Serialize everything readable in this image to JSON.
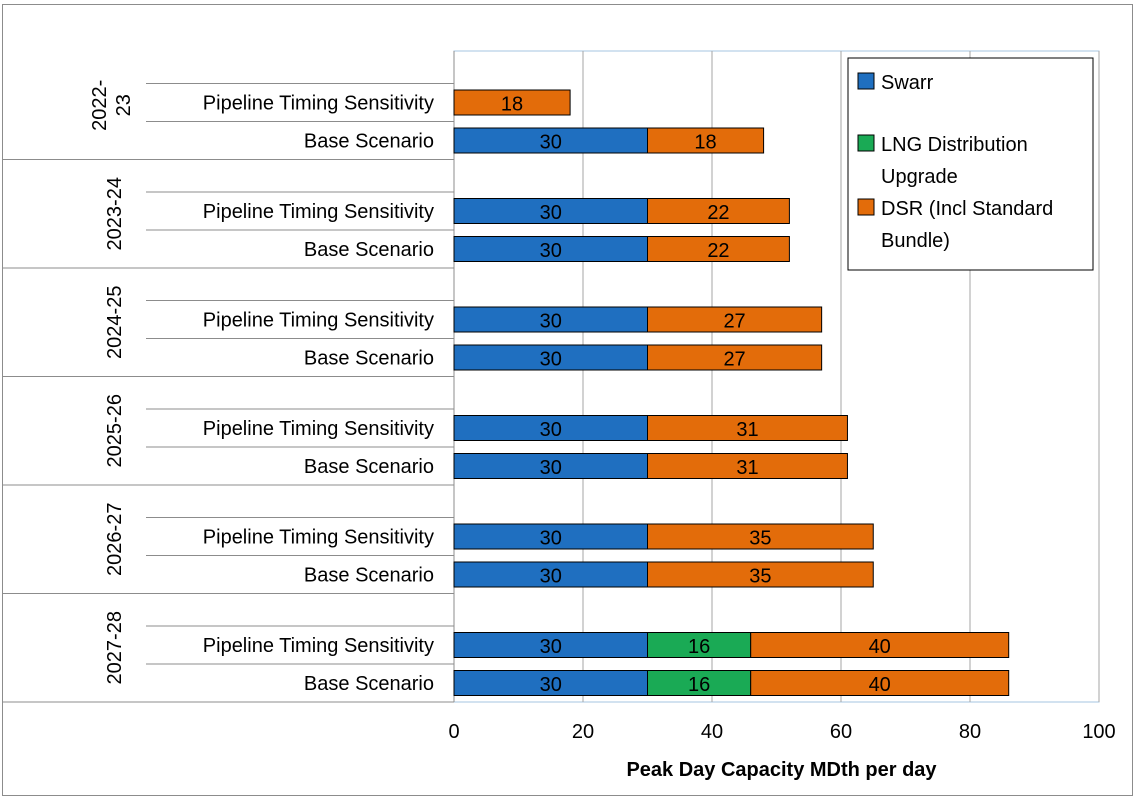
{
  "chart_data": {
    "type": "bar",
    "orientation": "horizontal",
    "stacked": true,
    "title": "",
    "xlabel": "Peak Day Capacity MDth per day",
    "ylabel": "",
    "xlim": [
      0,
      100
    ],
    "xticks": [
      0,
      20,
      40,
      60,
      80,
      100
    ],
    "grid": true,
    "legend": "top-right",
    "groups": [
      {
        "label": "2022-23",
        "rows": [
          {
            "label": "Pipeline Timing Sensitivity",
            "values": [
              0,
              0,
              18
            ]
          },
          {
            "label": "Base Scenario",
            "values": [
              30,
              0,
              18
            ]
          }
        ]
      },
      {
        "label": "2023-24",
        "rows": [
          {
            "label": "Pipeline Timing Sensitivity",
            "values": [
              30,
              0,
              22
            ]
          },
          {
            "label": "Base Scenario",
            "values": [
              30,
              0,
              22
            ]
          }
        ]
      },
      {
        "label": "2024-25",
        "rows": [
          {
            "label": "Pipeline Timing Sensitivity",
            "values": [
              30,
              0,
              27
            ]
          },
          {
            "label": "Base Scenario",
            "values": [
              30,
              0,
              27
            ]
          }
        ]
      },
      {
        "label": "2025-26",
        "rows": [
          {
            "label": "Pipeline Timing Sensitivity",
            "values": [
              30,
              0,
              31
            ]
          },
          {
            "label": "Base Scenario",
            "values": [
              30,
              0,
              31
            ]
          }
        ]
      },
      {
        "label": "2026-27",
        "rows": [
          {
            "label": "Pipeline Timing Sensitivity",
            "values": [
              30,
              0,
              35
            ]
          },
          {
            "label": "Base Scenario",
            "values": [
              30,
              0,
              35
            ]
          }
        ]
      },
      {
        "label": "2027-28",
        "rows": [
          {
            "label": "Pipeline Timing Sensitivity",
            "values": [
              30,
              16,
              40
            ]
          },
          {
            "label": "Base Scenario",
            "values": [
              30,
              16,
              40
            ]
          }
        ]
      }
    ],
    "series": [
      {
        "name": "Swarr",
        "color": "#1f6fc0"
      },
      {
        "name": "LNG Distribution Upgrade",
        "color": "#1aaa55"
      },
      {
        "name": "DSR (Incl Standard Bundle)",
        "color": "#e36c0a"
      }
    ]
  }
}
